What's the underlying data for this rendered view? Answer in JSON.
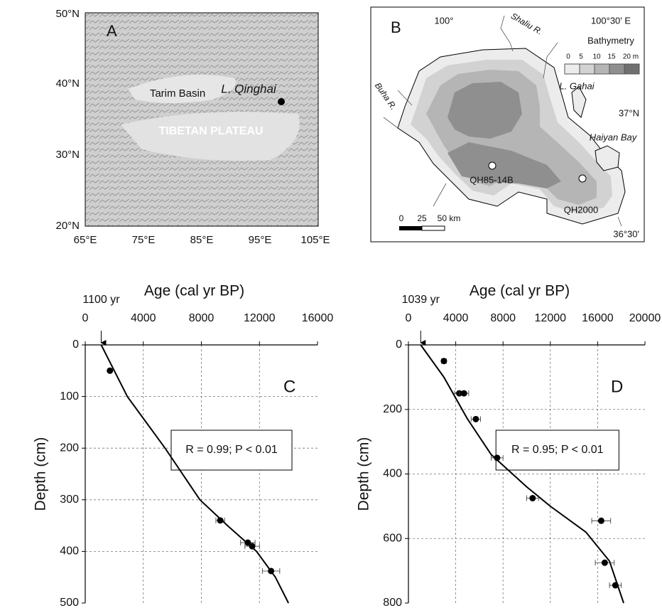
{
  "panel_a": {
    "label": "A",
    "lat_labels": [
      "50°N",
      "40°N",
      "30°N",
      "20°N"
    ],
    "lon_labels": [
      "65°E",
      "75°E",
      "85°E",
      "95°E",
      "105°E"
    ],
    "places": [
      "Tarim Basin",
      "L. Qinghai",
      "TIBETAN PLATEAU"
    ]
  },
  "panel_b": {
    "label": "B",
    "coords": [
      "100°",
      "100°30' E",
      "37°N",
      "36°30'"
    ],
    "rivers": [
      "Shaliu R.",
      "Buha R."
    ],
    "places": [
      "L. Gahai",
      "Haiyan Bay"
    ],
    "cores": [
      "QH85-14B",
      "QH2000"
    ],
    "legend_title": "Bathymetry",
    "legend_labels": [
      "0",
      "5",
      "10",
      "15",
      "20 m"
    ],
    "scale_labels": [
      "0",
      "25",
      "50 km"
    ]
  },
  "chart_data": [
    {
      "type": "scatter",
      "label": "C",
      "x_label": "Age (cal yr BP)",
      "y_label": "Depth (cm)",
      "xlim": [
        0,
        16000
      ],
      "xticks": [
        0,
        4000,
        8000,
        12000,
        16000
      ],
      "ylim": [
        0,
        500
      ],
      "yticks": [
        0,
        100,
        200,
        300,
        400,
        500
      ],
      "y_reversed": true,
      "grid": true,
      "x": [
        1700,
        9300,
        11200,
        11500,
        12800
      ],
      "values": [
        50,
        340,
        383,
        390,
        438
      ],
      "xerr": [
        0,
        300,
        500,
        500,
        600
      ],
      "fit_x": [
        1100,
        2900,
        5500,
        7900,
        9800,
        11800,
        13100,
        14000
      ],
      "fit_values": [
        0,
        100,
        200,
        300,
        350,
        400,
        450,
        500
      ],
      "reservoir_age": {
        "value": 1100,
        "label": "1100 yr"
      },
      "annotation": "R = 0.99; P < 0.01"
    },
    {
      "type": "scatter",
      "label": "D",
      "x_label": "Age (cal yr BP)",
      "y_label": "Depth (cm)",
      "xlim": [
        0,
        20000
      ],
      "xticks": [
        0,
        4000,
        8000,
        12000,
        16000,
        20000
      ],
      "ylim": [
        0,
        800
      ],
      "yticks": [
        0,
        200,
        400,
        600,
        800
      ],
      "y_reversed": true,
      "grid": true,
      "x": [
        3000,
        4300,
        4700,
        5700,
        7500,
        10500,
        16300,
        16600,
        17500
      ],
      "values": [
        50,
        150,
        150,
        230,
        350,
        475,
        545,
        675,
        745
      ],
      "xerr": [
        200,
        400,
        400,
        400,
        500,
        500,
        800,
        800,
        500
      ],
      "fit_x": [
        1039,
        3000,
        5000,
        7000,
        10000,
        12000,
        15000,
        17000,
        18200
      ],
      "fit_values": [
        0,
        100,
        230,
        340,
        440,
        500,
        580,
        670,
        800
      ],
      "reservoir_age": {
        "value": 1039,
        "label": "1039 yr"
      },
      "annotation": "R = 0.95; P < 0.01"
    }
  ]
}
